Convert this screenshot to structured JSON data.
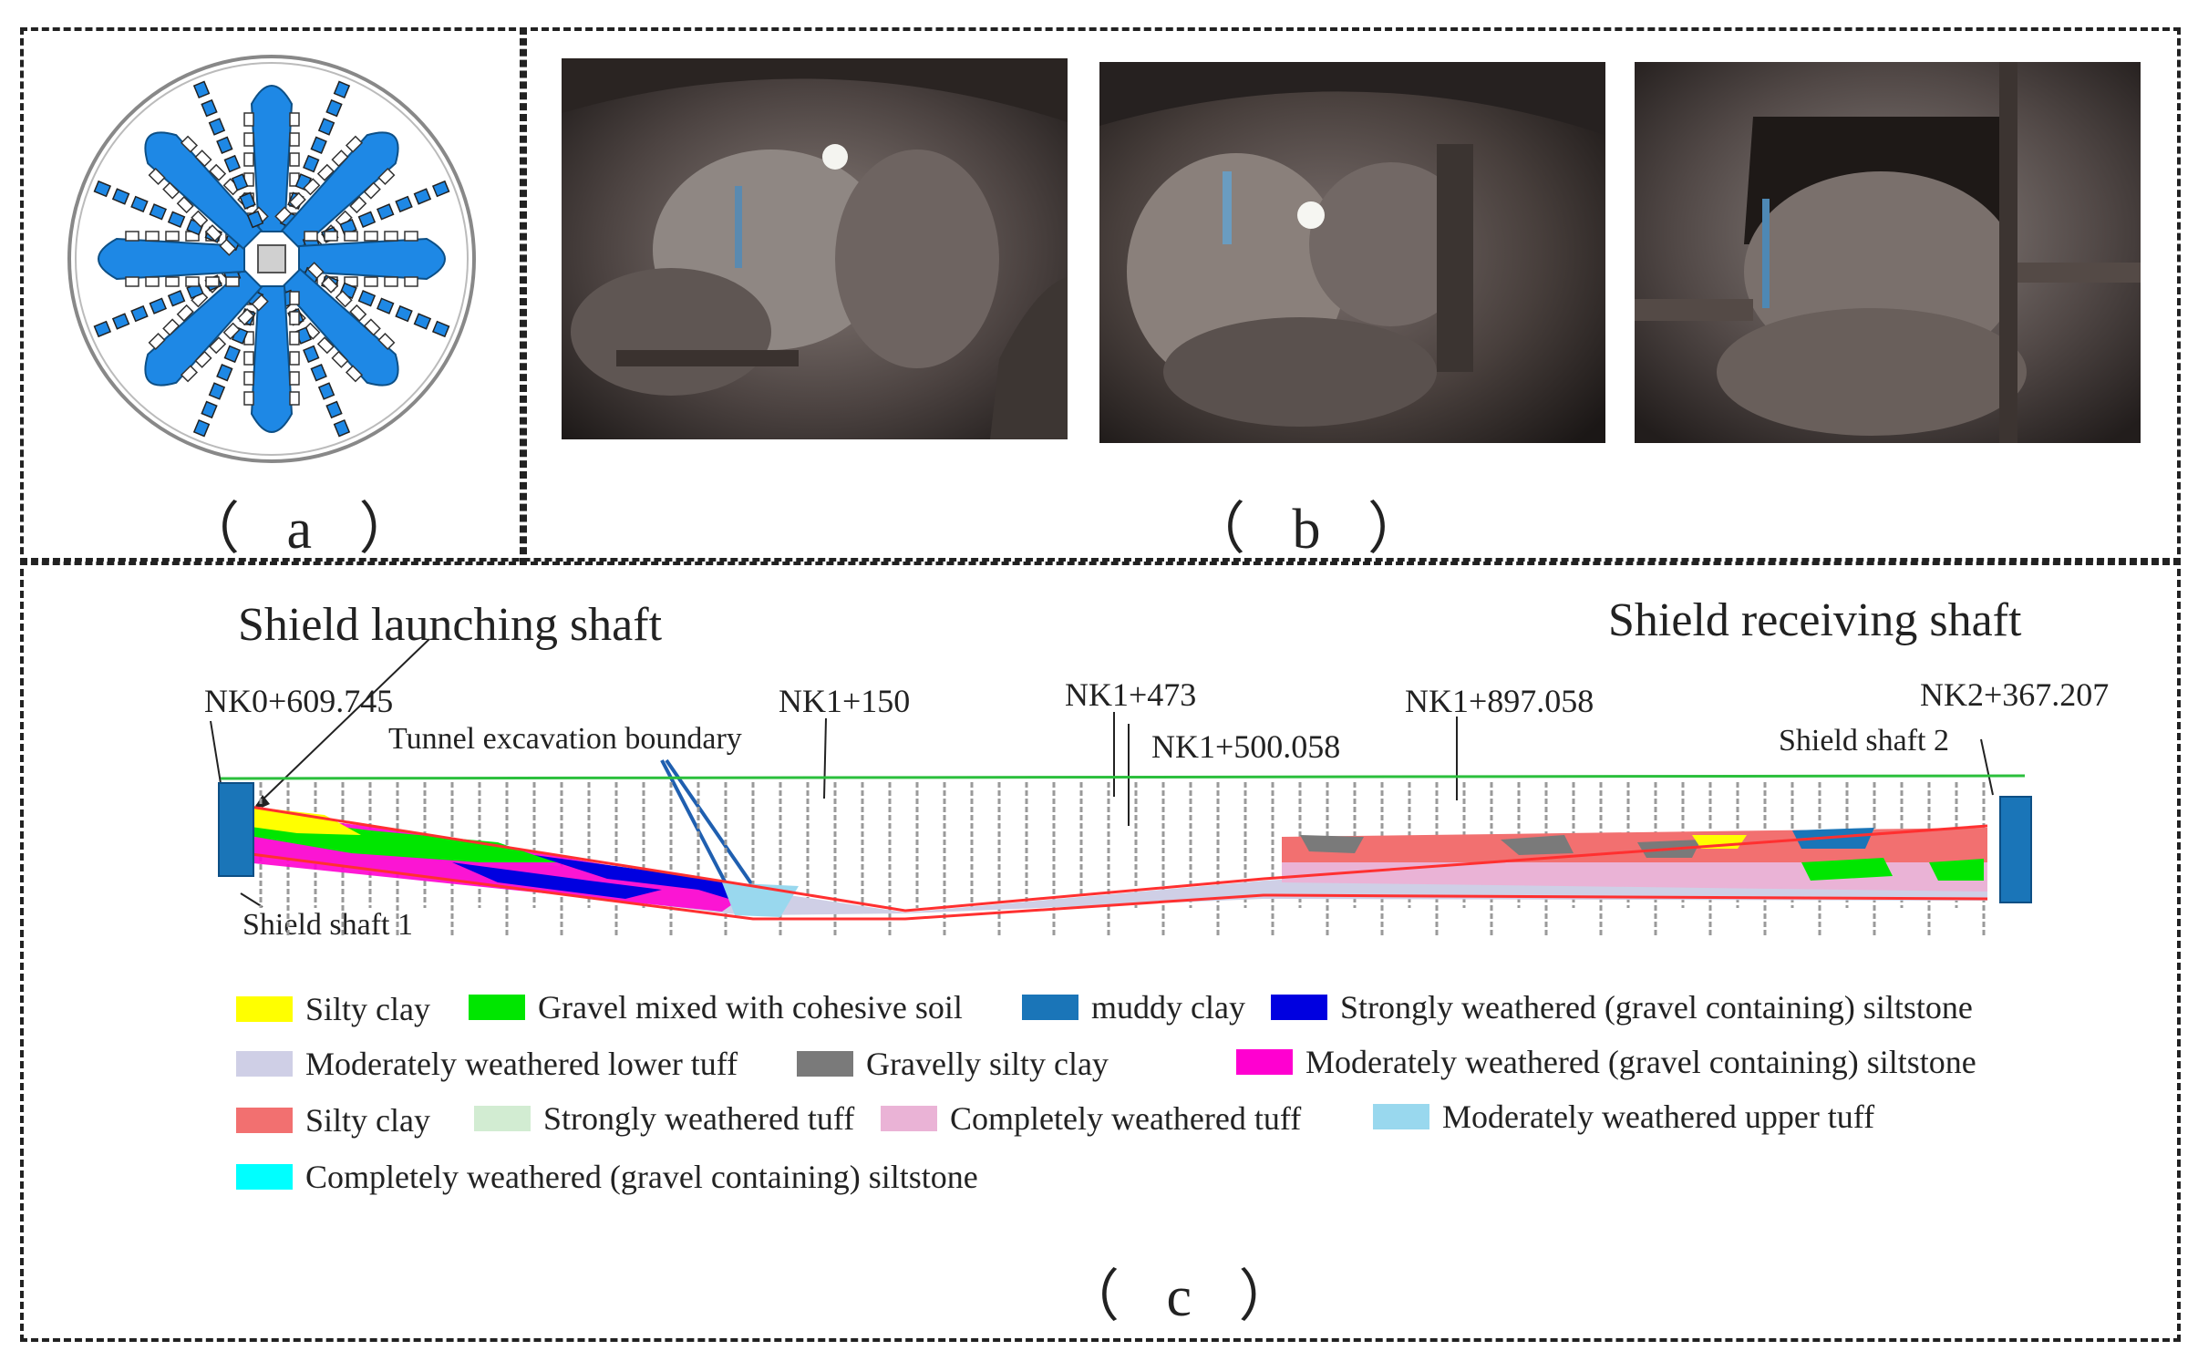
{
  "panels": {
    "a": {
      "label": "（ a ）"
    },
    "b": {
      "label": "（ b ）"
    },
    "c": {
      "label": "（ c ）"
    }
  },
  "profile": {
    "launch_title": "Shield launching shaft",
    "receive_title": "Shield receiving shaft",
    "stations": {
      "s1": "NK0+609.745",
      "s2": "NK1+150",
      "s3": "NK1+473",
      "s4": "NK1+500.058",
      "s5": "NK1+897.058",
      "s6": "NK2+367.207"
    },
    "boundary_note": "Tunnel excavation boundary",
    "shaft1": "Shield shaft 1",
    "shaft2": "Shield shaft 2"
  },
  "legend": [
    {
      "label": "Silty clay",
      "color": "#ffff00"
    },
    {
      "label": "Gravel mixed with cohesive soil",
      "color": "#00e600"
    },
    {
      "label": "muddy clay",
      "color": "#1a75b8"
    },
    {
      "label": "Strongly weathered (gravel containing) siltstone",
      "color": "#0000e0"
    },
    {
      "label": "Moderately weathered lower tuff",
      "color": "#cfcfe6"
    },
    {
      "label": "Gravelly silty clay",
      "color": "#7a7a7a"
    },
    {
      "label": "Moderately weathered (gravel containing) siltstone",
      "color": "#ff00d0"
    },
    {
      "label": "Silty clay",
      "color": "#f27070"
    },
    {
      "label": "Strongly weathered tuff",
      "color": "#d2ecd2"
    },
    {
      "label": "Completely weathered tuff",
      "color": "#eab3d6"
    },
    {
      "label": "Moderately weathered upper tuff",
      "color": "#99d8ee"
    },
    {
      "label": "Completely weathered (gravel containing) siltstone",
      "color": "#00ffff"
    }
  ]
}
